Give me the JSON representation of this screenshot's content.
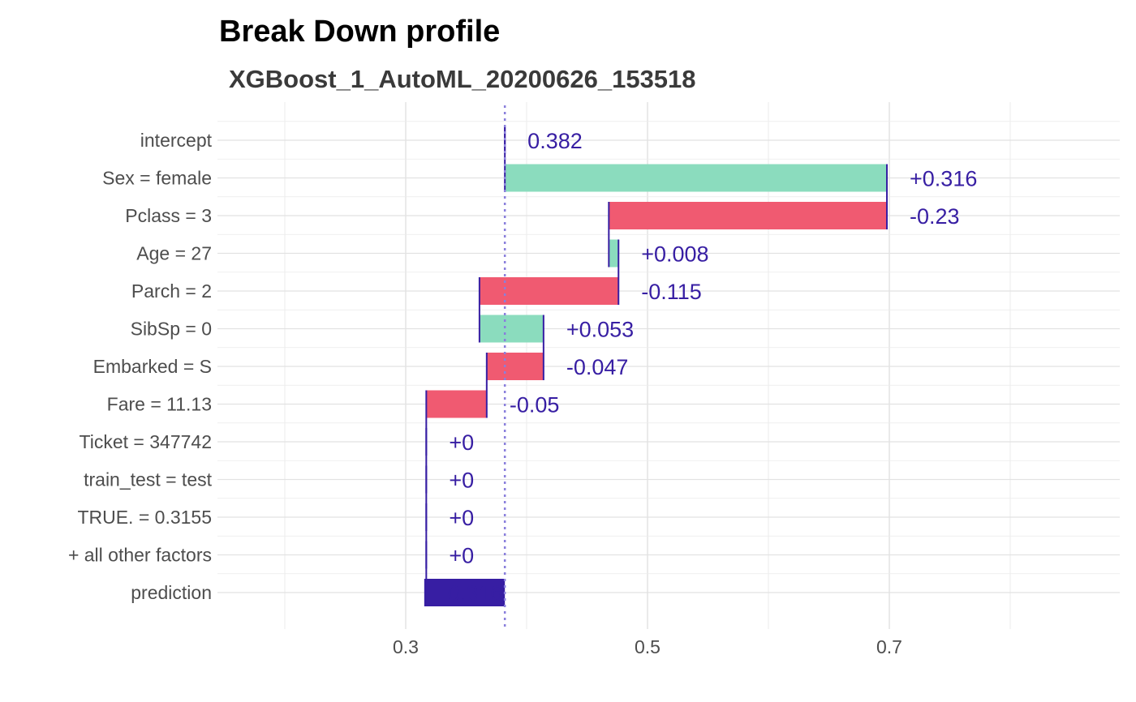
{
  "colors": {
    "positive": "#8bdcbe",
    "negative": "#f05a71",
    "prediction": "#371ea3",
    "label": "#371ea3",
    "baseline_line": "#8a7fdc",
    "grid": "#ebebeb",
    "axis_text": "#4d4d4d"
  },
  "chart_data": {
    "type": "waterfall",
    "title": "Break Down profile",
    "subtitle": "XGBoost_1_AutoML_20200626_153518",
    "xlabel": "",
    "ylabel": "",
    "xlim": [
      0.2,
      0.89
    ],
    "x_ticks": [
      0.3,
      0.5,
      0.7
    ],
    "x_tick_labels": [
      "0.3",
      "0.5",
      "0.7"
    ],
    "baseline": 0.382,
    "grid": true,
    "categories": [
      "intercept",
      "Sex = female",
      "Pclass = 3",
      "Age = 27",
      "Parch = 2",
      "SibSp = 0",
      "Embarked = S",
      "Fare = 11.13",
      "Ticket = 347742",
      "train_test = test",
      "TRUE. = 0.3155",
      "+ all other factors",
      "prediction"
    ],
    "bars": [
      {
        "variable": "intercept",
        "start": 0.382,
        "end": 0.382,
        "contribution": 0.382,
        "label": "0.382",
        "kind": "intercept"
      },
      {
        "variable": "Sex = female",
        "start": 0.382,
        "end": 0.698,
        "contribution": 0.316,
        "label": "+0.316",
        "kind": "positive"
      },
      {
        "variable": "Pclass = 3",
        "start": 0.698,
        "end": 0.468,
        "contribution": -0.23,
        "label": "-0.23",
        "kind": "negative"
      },
      {
        "variable": "Age = 27",
        "start": 0.468,
        "end": 0.476,
        "contribution": 0.008,
        "label": "+0.008",
        "kind": "positive"
      },
      {
        "variable": "Parch = 2",
        "start": 0.476,
        "end": 0.361,
        "contribution": -0.115,
        "label": "-0.115",
        "kind": "negative"
      },
      {
        "variable": "SibSp = 0",
        "start": 0.361,
        "end": 0.414,
        "contribution": 0.053,
        "label": "+0.053",
        "kind": "positive"
      },
      {
        "variable": "Embarked = S",
        "start": 0.414,
        "end": 0.367,
        "contribution": -0.047,
        "label": "-0.047",
        "kind": "negative"
      },
      {
        "variable": "Fare = 11.13",
        "start": 0.367,
        "end": 0.317,
        "contribution": -0.05,
        "label": "-0.05",
        "kind": "negative"
      },
      {
        "variable": "Ticket = 347742",
        "start": 0.317,
        "end": 0.317,
        "contribution": 0,
        "label": "+0",
        "kind": "positive"
      },
      {
        "variable": "train_test = test",
        "start": 0.317,
        "end": 0.317,
        "contribution": 0,
        "label": "+0",
        "kind": "positive"
      },
      {
        "variable": "TRUE. = 0.3155",
        "start": 0.317,
        "end": 0.317,
        "contribution": 0,
        "label": "+0",
        "kind": "positive"
      },
      {
        "variable": "+ all other factors",
        "start": 0.317,
        "end": 0.317,
        "contribution": 0,
        "label": "+0",
        "kind": "positive"
      },
      {
        "variable": "prediction",
        "start": 0.382,
        "end": 0.316,
        "contribution": 0.316,
        "label": "0.316",
        "kind": "prediction"
      }
    ]
  }
}
